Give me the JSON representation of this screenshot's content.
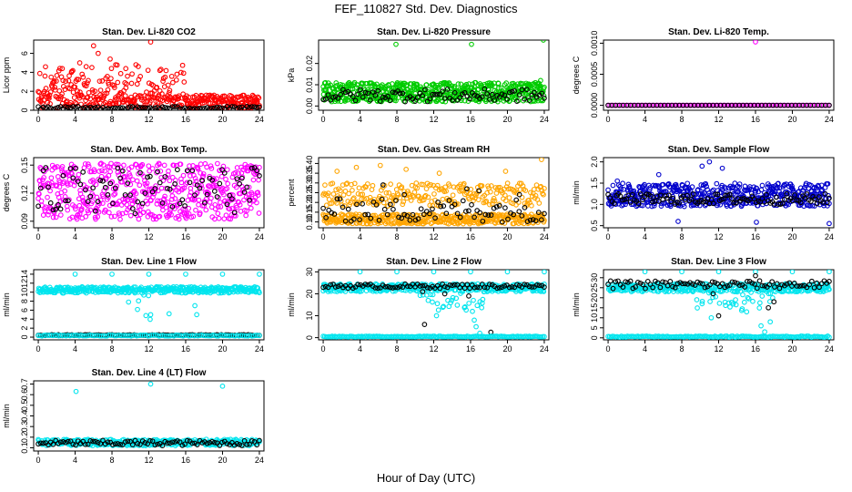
{
  "figure": {
    "title": "FEF_110827  Std. Dev. Diagnostics",
    "xlabel": "Hour of Day (UTC)"
  },
  "chart_data": [
    {
      "type": "scatter",
      "title": "Stan. Dev. Li-820 CO2",
      "ylabel": "Licor ppm",
      "xlim": [
        -0.5,
        24.5
      ],
      "xticks": [
        0,
        4,
        8,
        12,
        16,
        20,
        24
      ],
      "ylim": [
        0,
        7.4
      ],
      "yticks": [
        0,
        2,
        4,
        6
      ],
      "series": [
        {
          "color": "#ff0000",
          "band": [
            0.1,
            1.6
          ],
          "n": 430,
          "spread": 1.2,
          "hi_end": 16,
          "outliers": [
            [
              12.2,
              7.2
            ],
            [
              4.5,
              5.0
            ],
            [
              5.2,
              4.6
            ],
            [
              6.0,
              6.8
            ],
            [
              6.5,
              6.0
            ],
            [
              7.8,
              5.4
            ],
            [
              8.4,
              4.8
            ],
            [
              9.5,
              4.4
            ],
            [
              10.6,
              4.8
            ],
            [
              13.2,
              4.2
            ],
            [
              3.6,
              4.0
            ],
            [
              2.6,
              4.4
            ],
            [
              23.0,
              1.2
            ]
          ]
        },
        {
          "color": "#000000",
          "band": [
            0.1,
            0.4
          ],
          "n": 90,
          "spread": 0
        }
      ]
    },
    {
      "type": "scatter",
      "title": "Stan. Dev. Li-820 Pressure",
      "ylabel": "kPa",
      "xlim": [
        -0.5,
        24.5
      ],
      "xticks": [
        0,
        4,
        8,
        12,
        16,
        20,
        24
      ],
      "ylim": [
        -0.002,
        0.031
      ],
      "yticks": [
        0.0,
        0.01,
        0.02
      ],
      "series": [
        {
          "color": "#00cc00",
          "band": [
            0.002,
            0.011
          ],
          "n": 600,
          "spread": 0,
          "outliers": [
            [
              7.9,
              0.029
            ],
            [
              16.1,
              0.029
            ],
            [
              23.9,
              0.031
            ],
            [
              23.6,
              0.012
            ]
          ]
        },
        {
          "color": "#000000",
          "band": [
            0.002,
            0.008
          ],
          "n": 90,
          "spread": 0
        }
      ]
    },
    {
      "type": "scatter",
      "title": "Stan. Dev. Li-820 Temp.",
      "ylabel": "degrees C",
      "xlim": [
        -0.5,
        24.5
      ],
      "xticks": [
        0,
        4,
        8,
        12,
        16,
        20,
        24
      ],
      "ylim": [
        -8e-05,
        0.00105
      ],
      "yticks": [
        0.0,
        0.0005,
        0.001
      ],
      "series": [
        {
          "color": "#ff00ff",
          "band": [
            0,
            0
          ],
          "n": 120,
          "spread": 0,
          "outliers": [
            [
              16.0,
              0.00102
            ]
          ]
        },
        {
          "color": "#000000",
          "band": [
            0,
            0
          ],
          "n": 60,
          "spread": 0
        }
      ]
    },
    {
      "type": "scatter",
      "title": "Stan. Dev. Amb. Box Temp.",
      "ylabel": "degrees C",
      "xlim": [
        -0.5,
        24.5
      ],
      "xticks": [
        0,
        4,
        8,
        12,
        16,
        20,
        24
      ],
      "ylim": [
        0.083,
        0.158
      ],
      "yticks": [
        0.09,
        0.12,
        0.15
      ],
      "series": [
        {
          "color": "#ff00ff",
          "band": [
            0.092,
            0.152
          ],
          "n": 560,
          "spread": 0
        },
        {
          "color": "#000000",
          "band": [
            0.098,
            0.148
          ],
          "n": 90,
          "spread": 0
        }
      ]
    },
    {
      "type": "scatter",
      "title": "Stan. Dev. Gas Stream RH",
      "ylabel": "percent",
      "xlim": [
        -0.5,
        24.5
      ],
      "xticks": [
        0,
        4,
        8,
        12,
        16,
        20,
        24
      ],
      "ylim": [
        0.07,
        0.43
      ],
      "yticks": [
        0.1,
        0.15,
        0.2,
        0.25,
        0.3,
        0.35,
        0.4
      ],
      "series": [
        {
          "color": "#ffa500",
          "band": [
            0.09,
            0.14
          ],
          "n": 380,
          "spread": 0
        },
        {
          "color": "#ffa500",
          "band": [
            0.18,
            0.3
          ],
          "n": 260,
          "spread": 0,
          "outliers": [
            [
              1.5,
              0.36
            ],
            [
              3.6,
              0.38
            ],
            [
              6.2,
              0.39
            ],
            [
              9.0,
              0.37
            ],
            [
              12.6,
              0.35
            ],
            [
              19.8,
              0.36
            ],
            [
              23.7,
              0.42
            ]
          ]
        },
        {
          "color": "#000000",
          "band": [
            0.1,
            0.22
          ],
          "n": 80,
          "spread": 0,
          "outliers": [
            [
              6.5,
              0.29
            ],
            [
              8.8,
              0.24
            ],
            [
              15.6,
              0.27
            ],
            [
              16.9,
              0.26
            ],
            [
              21.3,
              0.24
            ]
          ]
        }
      ]
    },
    {
      "type": "scatter",
      "title": "Stan. Dev. Sample Flow",
      "ylabel": "ml/min",
      "xlim": [
        -0.5,
        24.5
      ],
      "xticks": [
        0,
        4,
        8,
        12,
        16,
        20,
        24
      ],
      "ylim": [
        0.45,
        2.1
      ],
      "yticks": [
        0.5,
        1.0,
        1.5,
        2.0
      ],
      "series": [
        {
          "color": "#0000cc",
          "band": [
            0.95,
            1.5
          ],
          "n": 500,
          "spread": 0,
          "outliers": [
            [
              11.0,
              2.0
            ],
            [
              10.2,
              1.9
            ],
            [
              12.4,
              1.85
            ],
            [
              7.6,
              0.6
            ],
            [
              16.1,
              0.58
            ],
            [
              24.0,
              0.55
            ],
            [
              1.0,
              1.55
            ],
            [
              5.5,
              1.7
            ]
          ]
        },
        {
          "color": "#000000",
          "band": [
            1.0,
            1.25
          ],
          "n": 110,
          "spread": 0
        }
      ]
    },
    {
      "type": "scatter",
      "title": "Stan. Dev. Line 1 Flow",
      "ylabel": "ml/min",
      "xlim": [
        -0.5,
        24.5
      ],
      "xticks": [
        0,
        4,
        8,
        12,
        16,
        20,
        24
      ],
      "ylim": [
        -0.6,
        15.0
      ],
      "yticks": [
        0,
        2,
        4,
        6,
        8,
        10,
        12,
        14
      ],
      "series": [
        {
          "color": "#00e5ee",
          "band": [
            9.8,
            11.2
          ],
          "n": 420,
          "spread": 0,
          "dip": [
            10.5,
            12.5,
            7.0
          ],
          "outliers": [
            [
              4.0,
              14.0
            ],
            [
              8.0,
              14.0
            ],
            [
              12.0,
              14.0
            ],
            [
              16.0,
              14.0
            ],
            [
              20.0,
              14.0
            ],
            [
              24.0,
              14.0
            ],
            [
              12.2,
              5.0
            ],
            [
              14.2,
              5.2
            ],
            [
              17.2,
              5.0
            ],
            [
              9.8,
              7.8
            ],
            [
              17.0,
              7.0
            ]
          ]
        },
        {
          "color": "#000000",
          "band": [
            0.35,
            0.55
          ],
          "n": 100,
          "spread": 0
        },
        {
          "color": "#00e5ee",
          "band": [
            0.25,
            0.45
          ],
          "n": 120,
          "spread": 0
        }
      ]
    },
    {
      "type": "scatter",
      "title": "Stan. Dev. Line 2 Flow",
      "ylabel": "ml/min",
      "xlim": [
        -0.5,
        24.5
      ],
      "xticks": [
        0,
        4,
        8,
        12,
        16,
        20,
        24
      ],
      "ylim": [
        -1.0,
        31.0
      ],
      "yticks": [
        0,
        10,
        20,
        30
      ],
      "series": [
        {
          "color": "#00e5ee",
          "band": [
            21.0,
            24.5
          ],
          "n": 400,
          "spread": 0,
          "dip": [
            10.5,
            17.5,
            10.0
          ],
          "outliers": [
            [
              4.0,
              30.0
            ],
            [
              8.0,
              30.0
            ],
            [
              12.0,
              30.0
            ],
            [
              16.0,
              30.0
            ],
            [
              20.0,
              30.0
            ],
            [
              24.0,
              30.0
            ],
            [
              12.3,
              10.0
            ],
            [
              16.4,
              8.0
            ],
            [
              16.6,
              5.0
            ],
            [
              17.0,
              2.0
            ],
            [
              16.2,
              12.0
            ],
            [
              11.4,
              17.0
            ]
          ]
        },
        {
          "color": "#000000",
          "band": [
            22.5,
            24.5
          ],
          "n": 90,
          "spread": 0,
          "outliers": [
            [
              11.0,
              6.0
            ],
            [
              18.2,
              2.5
            ],
            [
              15.8,
              19.0
            ],
            [
              13.2,
              20.0
            ],
            [
              10.8,
              21.0
            ]
          ]
        },
        {
          "color": "#00e5ee",
          "band": [
            0.3,
            0.7
          ],
          "n": 150,
          "spread": 0
        }
      ]
    },
    {
      "type": "scatter",
      "title": "Stan. Dev. Line 3 Flow",
      "ylabel": "ml/min",
      "xlim": [
        -0.5,
        24.5
      ],
      "xticks": [
        0,
        4,
        8,
        12,
        16,
        20,
        24
      ],
      "ylim": [
        -1.0,
        34.0
      ],
      "yticks": [
        0,
        5,
        10,
        15,
        20,
        25,
        30
      ],
      "series": [
        {
          "color": "#00e5ee",
          "band": [
            23.0,
            27.0
          ],
          "n": 400,
          "spread": 0,
          "dip": [
            9.5,
            18.5,
            12.0
          ],
          "outliers": [
            [
              4.0,
              33.0
            ],
            [
              8.0,
              33.0
            ],
            [
              12.0,
              33.0
            ],
            [
              16.0,
              33.0
            ],
            [
              20.0,
              33.0
            ],
            [
              24.0,
              33.0
            ],
            [
              11.2,
              10.0
            ],
            [
              16.6,
              6.0
            ],
            [
              17.0,
              3.0
            ],
            [
              17.6,
              8.0
            ],
            [
              10.2,
              17.0
            ]
          ]
        },
        {
          "color": "#000000",
          "band": [
            24.5,
            28.5
          ],
          "n": 90,
          "spread": 0,
          "outliers": [
            [
              12.0,
              11.0
            ],
            [
              17.4,
              15.0
            ],
            [
              18.0,
              18.0
            ],
            [
              11.4,
              22.0
            ],
            [
              16.0,
              31.0
            ]
          ]
        },
        {
          "color": "#00e5ee",
          "band": [
            0.3,
            0.9
          ],
          "n": 150,
          "spread": 0
        }
      ]
    },
    {
      "type": "scatter",
      "title": "Stan. Dev. Line 4 (LT) Flow",
      "ylabel": "ml/min",
      "xlim": [
        -0.5,
        24.5
      ],
      "xticks": [
        0,
        4,
        8,
        12,
        16,
        20,
        24
      ],
      "ylim": [
        0.07,
        0.73
      ],
      "yticks": [
        0.1,
        0.2,
        0.3,
        0.4,
        0.5,
        0.6,
        0.7
      ],
      "series": [
        {
          "color": "#00e5ee",
          "band": [
            0.12,
            0.18
          ],
          "n": 330,
          "spread": 0,
          "outliers": [
            [
              4.1,
              0.63
            ],
            [
              12.2,
              0.7
            ],
            [
              20.0,
              0.68
            ]
          ]
        },
        {
          "color": "#000000",
          "band": [
            0.12,
            0.17
          ],
          "n": 90,
          "spread": 0
        }
      ]
    }
  ]
}
